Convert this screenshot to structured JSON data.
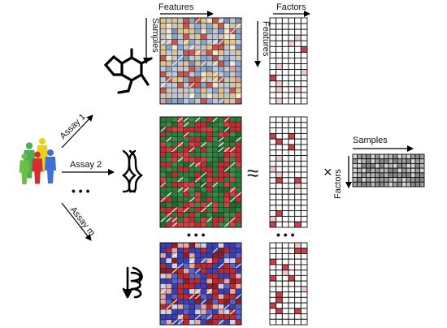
{
  "labels": {
    "features_top": "Features",
    "samples_left": "Samples",
    "factors_top": "Factors",
    "features_left": "Features",
    "assay1": "Assay 1",
    "assay2": "Assay 2",
    "assaym": "Assay m",
    "approx": "≈",
    "times": "×",
    "samples_right": "Samples",
    "factors_right": "Factors",
    "ellipsis": "• • •"
  },
  "colors": {
    "matrix1": [
      "#c7c7c7",
      "#8fa7c9",
      "#dfc48b",
      "#c8574f",
      "#f1e6cf",
      "#b9c9e0",
      "#7b93b8",
      "#d9a0a0"
    ],
    "matrix2": [
      "#2e7d3c",
      "#c12d32",
      "#3a8a48",
      "#d44040",
      "#1f6b30"
    ],
    "matrix3": [
      "#3a3fb5",
      "#c0282e",
      "#e4a9a9",
      "#cfd3ea",
      "#5b62c8",
      "#8a1f2a"
    ],
    "loading_highlight": "#c8404a",
    "loading_light": "#f2c9cc",
    "factor_matrix": [
      "#9c9c9c",
      "#b8b8b8",
      "#d6d6d6",
      "#888888"
    ],
    "people": [
      "#4caf50",
      "#e6d21a",
      "#d42e2e",
      "#3f6fd6",
      "#6cc04a"
    ]
  },
  "icons": [
    "people-icon",
    "molecule-icon",
    "dna-icon",
    "protein-icon"
  ]
}
